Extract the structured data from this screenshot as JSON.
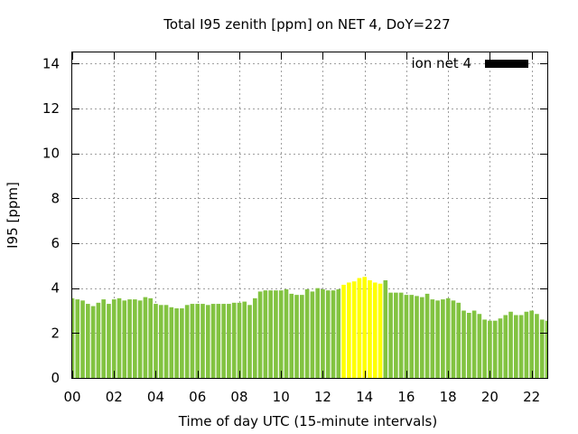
{
  "chart_data": {
    "type": "bar",
    "title": "Total I95 zenith [ppm] on NET 4, DoY=227",
    "xlabel": "Time of day UTC (15-minute intervals)",
    "ylabel": "I95 [ppm]",
    "xlim": [
      0,
      22.75
    ],
    "ylim": [
      0,
      14.5
    ],
    "x_ticks": [
      "00",
      "02",
      "04",
      "06",
      "08",
      "10",
      "12",
      "14",
      "16",
      "18",
      "20",
      "22"
    ],
    "y_ticks": [
      "0",
      "2",
      "4",
      "6",
      "8",
      "10",
      "12",
      "14"
    ],
    "grid": true,
    "legend": {
      "label": "ion net 4",
      "position": "top-right",
      "color": "#000000"
    },
    "colors": {
      "normal": "#82c341",
      "highlight": "#ffff00"
    },
    "bar_width_hours": 0.2,
    "series": [
      {
        "x": [
          0,
          0.25,
          0.5,
          0.75,
          1,
          1.25,
          1.5,
          1.75,
          2,
          2.25,
          2.5,
          2.75,
          3,
          3.25,
          3.5,
          3.75,
          4,
          4.25,
          4.5,
          4.75,
          5,
          5.25,
          5.5,
          5.75,
          6,
          6.25,
          6.5,
          6.75,
          7,
          7.25,
          7.5,
          7.75,
          8,
          8.25,
          8.5,
          8.75,
          9,
          9.25,
          9.5,
          9.75,
          10,
          10.25,
          10.5,
          10.75,
          11,
          11.25,
          11.5,
          11.75,
          12,
          12.25,
          12.5,
          12.75,
          13,
          13.25,
          13.5,
          13.75,
          14,
          14.25,
          14.5,
          14.75,
          15,
          15.25,
          15.5,
          15.75,
          16,
          16.25,
          16.5,
          16.75,
          17,
          17.25,
          17.5,
          17.75,
          18,
          18.25,
          18.5,
          18.75,
          19,
          19.25,
          19.5,
          19.75,
          20,
          20.25,
          20.5,
          20.75,
          21,
          21.25,
          21.5,
          21.75,
          22,
          22.25,
          22.5,
          22.75
        ],
        "values": [
          3.55,
          3.5,
          3.45,
          3.3,
          3.2,
          3.35,
          3.5,
          3.3,
          3.5,
          3.55,
          3.45,
          3.5,
          3.5,
          3.45,
          3.6,
          3.55,
          3.3,
          3.25,
          3.25,
          3.15,
          3.1,
          3.1,
          3.25,
          3.3,
          3.3,
          3.3,
          3.25,
          3.3,
          3.3,
          3.3,
          3.3,
          3.35,
          3.35,
          3.4,
          3.25,
          3.55,
          3.85,
          3.9,
          3.9,
          3.9,
          3.9,
          3.95,
          3.75,
          3.7,
          3.7,
          3.95,
          3.85,
          4.0,
          3.95,
          3.9,
          3.9,
          3.95,
          4.15,
          4.25,
          4.3,
          4.45,
          4.5,
          4.35,
          4.25,
          4.2,
          4.35,
          3.8,
          3.8,
          3.8,
          3.7,
          3.7,
          3.65,
          3.6,
          3.75,
          3.5,
          3.45,
          3.5,
          3.55,
          3.45,
          3.35,
          3.0,
          2.9,
          3.0,
          2.85,
          2.6,
          2.55,
          2.55,
          2.65,
          2.8,
          2.95,
          2.8,
          2.8,
          2.95,
          3.0,
          2.85,
          2.6,
          2.55
        ],
        "highlight_range": [
          13,
          14.75
        ]
      }
    ]
  }
}
